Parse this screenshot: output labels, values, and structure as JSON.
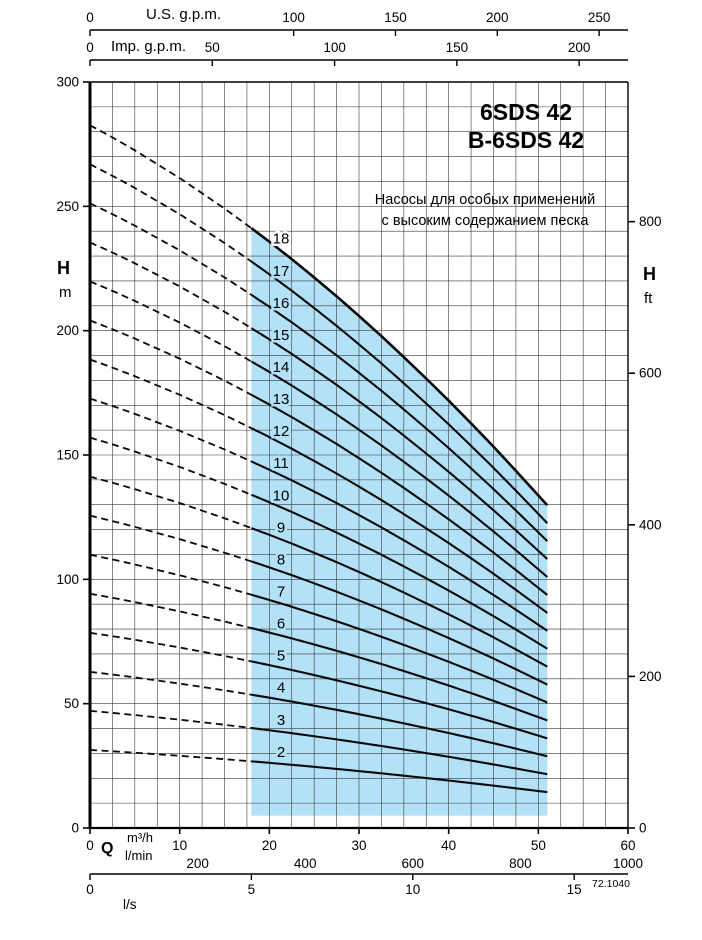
{
  "title": {
    "line1": "6SDS 42",
    "line2": "B-6SDS 42"
  },
  "subtitle": {
    "line1": "Насосы для особых применений",
    "line2": "с высоким содержанием песка"
  },
  "note": "72.1040",
  "axes": {
    "top_us": {
      "label": "U.S. g.p.m.",
      "ticks": [
        0,
        100,
        150,
        200,
        250
      ]
    },
    "top_imp": {
      "label": "Imp. g.p.m.",
      "ticks": [
        0,
        50,
        100,
        150,
        200
      ]
    },
    "left": {
      "name": "H",
      "unit": "m",
      "ticks": [
        0,
        50,
        100,
        150,
        200,
        250,
        300
      ]
    },
    "right": {
      "name": "H",
      "unit": "ft",
      "ticks": [
        0,
        200,
        400,
        600,
        800
      ]
    },
    "bottom": {
      "name": "Q",
      "unit_m3h": "m³/h",
      "unit_lmin": "l/min",
      "unit_ls": "l/s",
      "ticks_m3h": [
        0,
        10,
        20,
        30,
        40,
        50,
        60
      ],
      "ticks_lmin": [
        200,
        400,
        600,
        800,
        1000
      ],
      "ticks_ls": [
        0,
        5,
        10,
        15
      ]
    }
  },
  "chart_data": {
    "type": "line",
    "title": "6SDS 42 / B-6SDS 42",
    "xlabel": "Q (m³/h)",
    "ylabel": "H (m)",
    "xlim": [
      0,
      60
    ],
    "ylim": [
      0,
      300
    ],
    "grid_step": {
      "x_m3h": 2.5,
      "y_m": 10
    },
    "stages": [
      2,
      3,
      4,
      5,
      6,
      7,
      8,
      9,
      10,
      11,
      12,
      13,
      14,
      15,
      16,
      17,
      18
    ],
    "x_m3h": [
      0,
      2.5,
      5,
      7.5,
      10,
      12.5,
      15,
      18,
      20,
      22.5,
      25,
      27.5,
      30,
      32.5,
      35,
      37.5,
      40,
      42.5,
      45,
      47.5,
      50,
      51
    ],
    "single_stage_head_m": [
      15.7,
      15.43,
      15.14,
      14.83,
      14.52,
      14.18,
      13.84,
      13.4,
      13.1,
      12.71,
      12.3,
      11.88,
      11.44,
      10.99,
      10.52,
      10.04,
      9.55,
      9.04,
      8.52,
      7.98,
      7.43,
      7.21
    ],
    "dashed_range_m3h": [
      0,
      18
    ],
    "solid_range_m3h": [
      18,
      51
    ],
    "shaded_region": {
      "x_from_m3h": 18,
      "x_to_m3h": 51,
      "y_bottom_m": 5,
      "color": "#b3e1f7"
    }
  }
}
